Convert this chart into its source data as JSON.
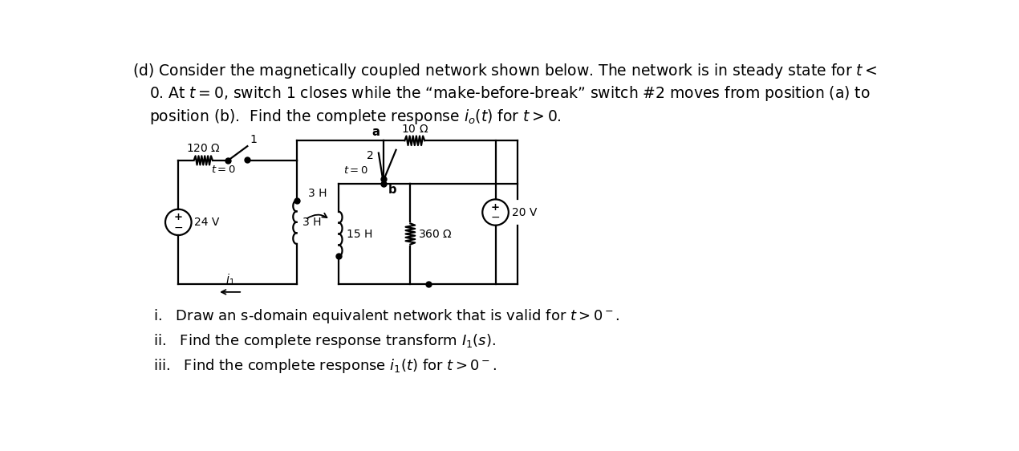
{
  "bg": "#ffffff",
  "tc": "#000000",
  "line1": "(d) Consider the magnetically coupled network shown below. The network is in steady state for $t <$",
  "line2": "0. At $t = 0$, switch 1 closes while the “make-before-break” switch #2 moves from position (a) to",
  "line3": "position (b).  Find the complete response $i_o(t)$ for $t > 0$.",
  "item_i": "i.   Draw an s-domain equivalent network that is valid for $t > 0^-$.",
  "item_ii": "ii.   Find the complete response transform $I_1(s)$.",
  "item_iii": "iii.   Find the complete response $i_1(t)$ for $t > 0^-$.",
  "fsh": 13.5,
  "fsi": 13,
  "fsc": 10,
  "lw": 1.6,
  "cc": "#000000",
  "circ_scale": 1.0
}
